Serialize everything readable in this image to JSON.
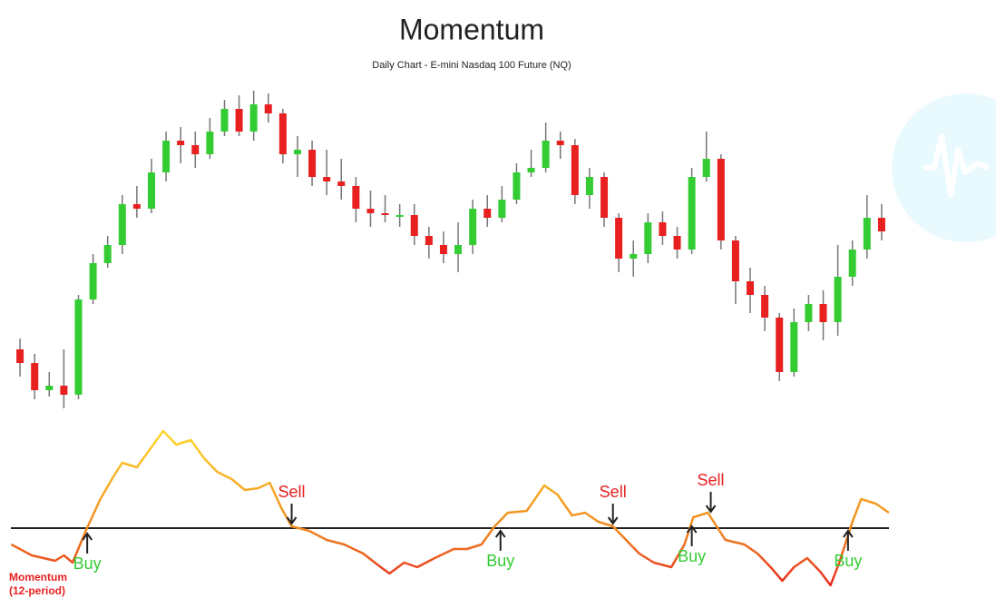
{
  "chart_data": [
    {
      "type": "candlestick",
      "title": "Momentum",
      "subtitle": "Daily Chart - E-mini Nasdaq 100 Future (NQ)",
      "up_color": "#33cc33",
      "down_color": "#e82020",
      "wick_color": "#777777",
      "xlim": [
        -1,
        60
      ],
      "ylim": [
        0,
        370
      ],
      "open": [
        80,
        65,
        35,
        40,
        30,
        135,
        175,
        195,
        240,
        235,
        275,
        310,
        305,
        295,
        320,
        345,
        320,
        350,
        340,
        295,
        300,
        270,
        265,
        260,
        235,
        230,
        228,
        228,
        205,
        195,
        185,
        195,
        235,
        225,
        245,
        275,
        280,
        310,
        305,
        250,
        270,
        225,
        180,
        185,
        220,
        205,
        190,
        270,
        290,
        200,
        155,
        140,
        115,
        55,
        110,
        130,
        110,
        160,
        190,
        225
      ],
      "high": [
        92,
        75,
        55,
        80,
        140,
        185,
        205,
        250,
        260,
        290,
        320,
        325,
        320,
        335,
        355,
        360,
        365,
        362,
        345,
        315,
        310,
        300,
        290,
        270,
        255,
        250,
        240,
        240,
        215,
        210,
        220,
        245,
        250,
        260,
        285,
        300,
        330,
        320,
        312,
        280,
        275,
        230,
        200,
        230,
        232,
        215,
        280,
        320,
        295,
        205,
        170,
        150,
        120,
        125,
        140,
        145,
        195,
        200,
        250,
        240
      ],
      "low": [
        50,
        25,
        28,
        15,
        25,
        130,
        170,
        185,
        225,
        230,
        265,
        285,
        280,
        290,
        315,
        315,
        310,
        330,
        285,
        270,
        260,
        250,
        245,
        220,
        215,
        220,
        215,
        195,
        180,
        175,
        165,
        185,
        215,
        220,
        240,
        270,
        275,
        290,
        240,
        235,
        215,
        165,
        160,
        175,
        195,
        180,
        185,
        265,
        190,
        130,
        120,
        100,
        45,
        50,
        100,
        90,
        95,
        150,
        180,
        200
      ],
      "close": [
        65,
        35,
        40,
        30,
        135,
        175,
        195,
        240,
        235,
        275,
        310,
        305,
        295,
        320,
        345,
        320,
        350,
        340,
        295,
        300,
        270,
        265,
        260,
        235,
        230,
        228,
        228,
        205,
        195,
        185,
        195,
        235,
        225,
        245,
        275,
        280,
        310,
        305,
        250,
        270,
        225,
        180,
        185,
        220,
        205,
        190,
        270,
        290,
        200,
        155,
        140,
        115,
        55,
        110,
        130,
        110,
        160,
        190,
        225,
        210
      ]
    },
    {
      "type": "line",
      "label_lines": [
        "Momentum",
        "(12-period)"
      ],
      "label_color": "#e82020",
      "gradient": [
        "#e82020",
        "#f08a20",
        "#ffdd30"
      ],
      "baseline": 0,
      "baseline_color": "#222222",
      "xlim": [
        -1,
        60
      ],
      "ylim": [
        -70,
        115
      ],
      "x": [
        -0.6,
        0.8,
        2.4,
        3.0,
        3.6,
        4.5,
        5.5,
        6.4,
        7.0,
        8.0,
        8.9,
        9.8,
        10.7,
        11.7,
        12.6,
        13.5,
        14.5,
        15.4,
        16.3,
        17.1,
        17.9,
        18.6,
        19.8,
        21.0,
        22.2,
        23.5,
        24.7,
        25.3,
        26.3,
        27.2,
        28.4,
        29.7,
        30.6,
        31.6,
        32.5,
        33.4,
        34.7,
        35.9,
        36.8,
        37.8,
        38.7,
        39.6,
        40.6,
        41.5,
        42.4,
        43.4,
        44.6,
        45.5,
        46.1,
        47.1,
        47.7,
        48.3,
        49.6,
        50.5,
        51.4,
        52.2,
        53.0,
        53.9,
        54.8,
        55.5,
        56.1,
        57.0,
        57.6,
        58.6,
        59.5
      ],
      "values": [
        -18,
        -30,
        -36,
        -30,
        -38,
        -3,
        32,
        57,
        72,
        67,
        87,
        107,
        92,
        97,
        77,
        62,
        54,
        42,
        44,
        50,
        22,
        2,
        -3,
        -13,
        -18,
        -28,
        -43,
        -50,
        -38,
        -43,
        -33,
        -23,
        -23,
        -18,
        2,
        17,
        19,
        47,
        37,
        14,
        17,
        7,
        2,
        -13,
        -28,
        -38,
        -43,
        -18,
        12,
        17,
        2,
        -13,
        -18,
        -28,
        -43,
        -58,
        -43,
        -33,
        -48,
        -63,
        -38,
        7,
        32,
        27,
        17
      ],
      "annotations": [
        {
          "text": "Sell",
          "x": 18.6,
          "value": 2,
          "side": "above",
          "color": "#e82020"
        },
        {
          "text": "Sell",
          "x": 40.6,
          "value": 2,
          "side": "above",
          "color": "#e82020"
        },
        {
          "text": "Sell",
          "x": 47.3,
          "value": 15,
          "side": "above",
          "color": "#e82020"
        },
        {
          "text": "Buy",
          "x": 4.6,
          "value": -3,
          "side": "below",
          "color": "#33cc33"
        },
        {
          "text": "Buy",
          "x": 32.9,
          "value": 0,
          "side": "below",
          "color": "#33cc33"
        },
        {
          "text": "Buy",
          "x": 46.0,
          "value": 5,
          "side": "below",
          "color": "#33cc33"
        },
        {
          "text": "Buy",
          "x": 56.7,
          "value": 0,
          "side": "below",
          "color": "#33cc33"
        }
      ]
    }
  ]
}
